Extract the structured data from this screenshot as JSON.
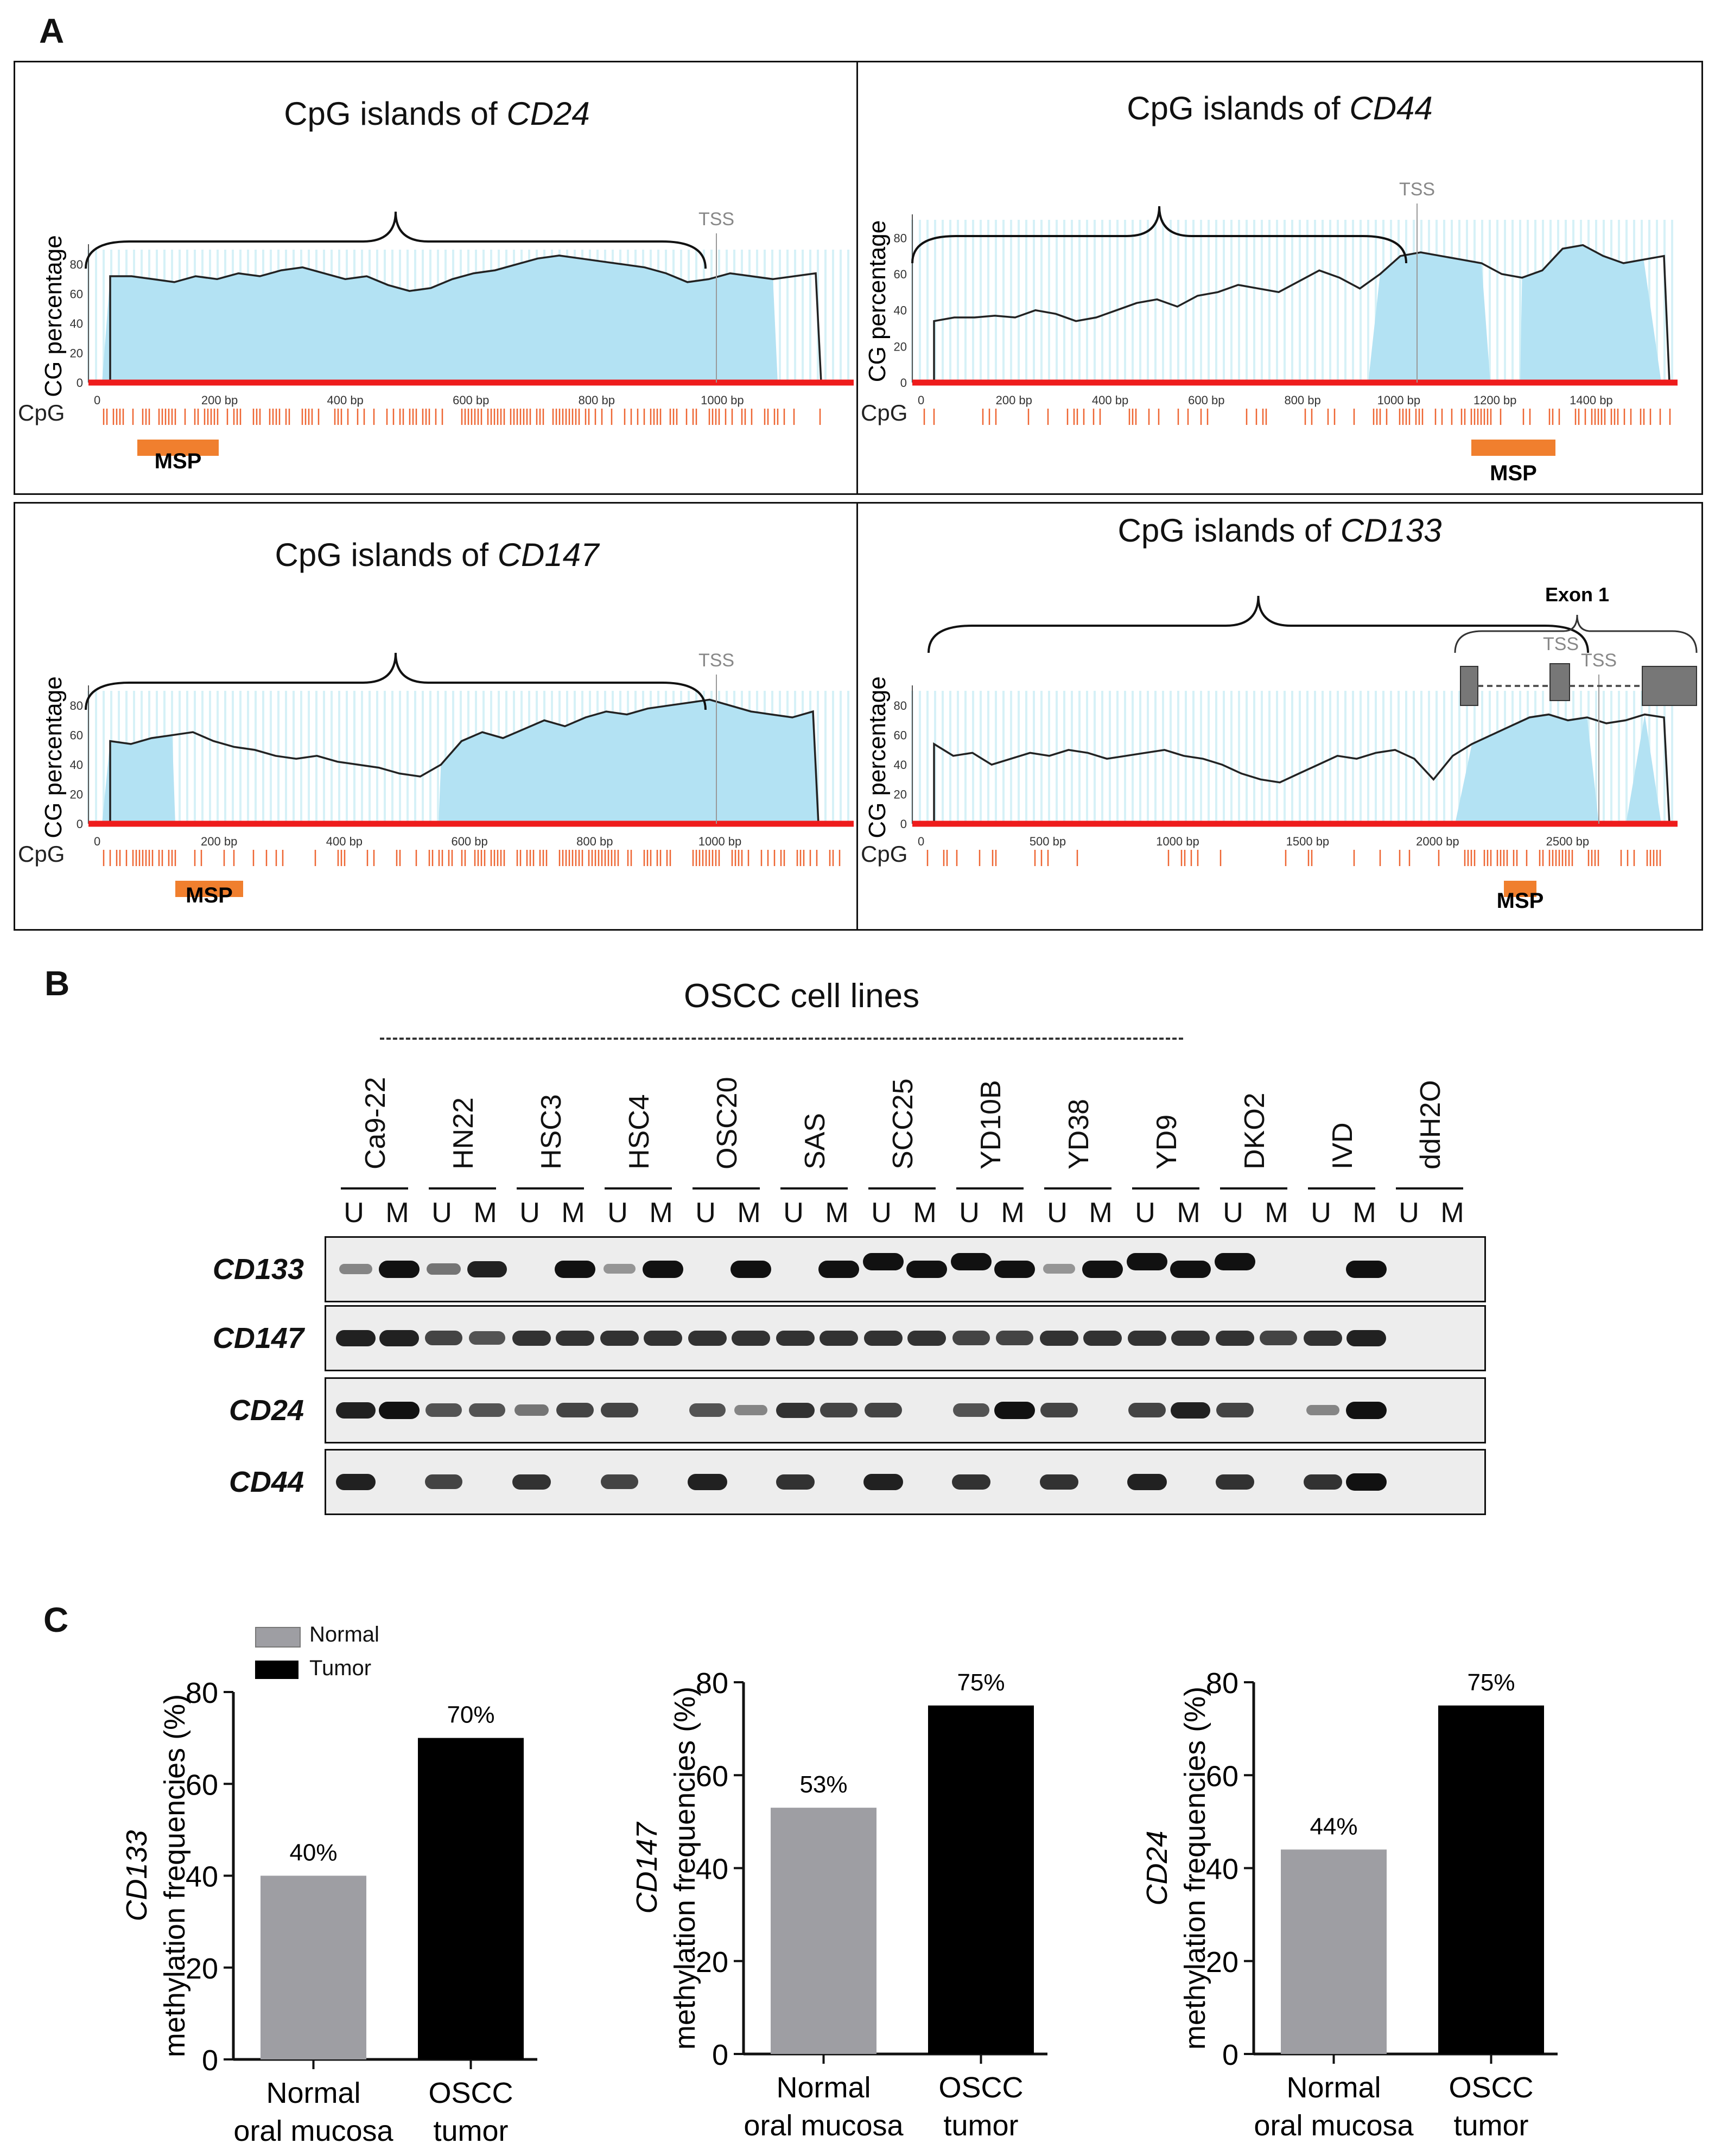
{
  "figure": {
    "panel_a_label": "A",
    "panel_b_label": "B",
    "panel_c_label": "C"
  },
  "panel_a": {
    "y_axis_label": "CG percentage",
    "cpg_row_label": "CpG",
    "tss_label": "TSS",
    "msp_label": "MSP",
    "exon_label": "Exon 1",
    "y_ticks": [
      "0",
      "20",
      "40",
      "60",
      "80"
    ],
    "plots": [
      {
        "key": "cd24",
        "title_prefix": "CpG islands of ",
        "gene": "CD24",
        "ticks": [
          "0",
          "200 bp",
          "400 bp",
          "600 bp",
          "800 bp",
          "1000 bp"
        ]
      },
      {
        "key": "cd44",
        "title_prefix": "CpG islands of ",
        "gene": "CD44",
        "ticks": [
          "0",
          "200 bp",
          "400 bp",
          "600 bp",
          "800 bp",
          "1000 bp",
          "1200 bp",
          "1400 bp"
        ]
      },
      {
        "key": "cd147",
        "title_prefix": "CpG islands of ",
        "gene": "CD147",
        "ticks": [
          "0",
          "200 bp",
          "400 bp",
          "600 bp",
          "800 bp",
          "1000 bp"
        ]
      },
      {
        "key": "cd133",
        "title_prefix": "CpG islands of ",
        "gene": "CD133",
        "ticks": [
          "0",
          "500 bp",
          "1000 bp",
          "1500 bp",
          "2000 bp",
          "2500 bp"
        ]
      }
    ]
  },
  "panel_b": {
    "title": "OSCC cell lines",
    "lanes": [
      "Ca9-22",
      "HN22",
      "HSC3",
      "HSC4",
      "OSC20",
      "SAS",
      "SCC25",
      "YD10B",
      "YD38",
      "YD9",
      "DKO2",
      "IVD",
      "ddH2O"
    ],
    "u_label": "U",
    "m_label": "M",
    "genes": [
      "CD133",
      "CD147",
      "CD24",
      "CD44"
    ]
  },
  "panel_c": {
    "legend": {
      "normal": "Normal",
      "tumor": "Tumor"
    },
    "colors": {
      "normal": "#9e9ea3",
      "tumor": "#000000"
    }
  },
  "chart_data": [
    {
      "type": "bar",
      "gene": "CD133",
      "ylabel_gene": "CD133",
      "ylabel": "methylation frequencies  (%)",
      "categories": [
        "Normal oral mucosa",
        "OSCC tumor"
      ],
      "cat_line1": [
        "Normal",
        "OSCC"
      ],
      "cat_line2": [
        "oral mucosa",
        "tumor"
      ],
      "values": [
        40,
        70
      ],
      "data_labels": [
        "40%",
        "70%"
      ],
      "ylim": [
        0,
        80
      ],
      "yticks": [
        "0",
        "20",
        "40",
        "60",
        "80"
      ]
    },
    {
      "type": "bar",
      "gene": "CD147",
      "ylabel_gene": "CD147",
      "ylabel": "methylation frequencies  (%)",
      "categories": [
        "Normal oral mucosa",
        "OSCC tumor"
      ],
      "cat_line1": [
        "Normal",
        "OSCC"
      ],
      "cat_line2": [
        "oral mucosa",
        "tumor"
      ],
      "values": [
        53,
        75
      ],
      "data_labels": [
        "53%",
        "75%"
      ],
      "ylim": [
        0,
        80
      ],
      "yticks": [
        "0",
        "20",
        "40",
        "60",
        "80"
      ]
    },
    {
      "type": "bar",
      "gene": "CD24",
      "ylabel_gene": "CD24",
      "ylabel": "methylation frequencies  (%)",
      "categories": [
        "Normal oral mucosa",
        "OSCC tumor"
      ],
      "cat_line1": [
        "Normal",
        "OSCC"
      ],
      "cat_line2": [
        "oral mucosa",
        "tumor"
      ],
      "values": [
        44,
        75
      ],
      "data_labels": [
        "44%",
        "75%"
      ],
      "ylim": [
        0,
        80
      ],
      "yticks": [
        "0",
        "20",
        "40",
        "60",
        "80"
      ]
    }
  ]
}
